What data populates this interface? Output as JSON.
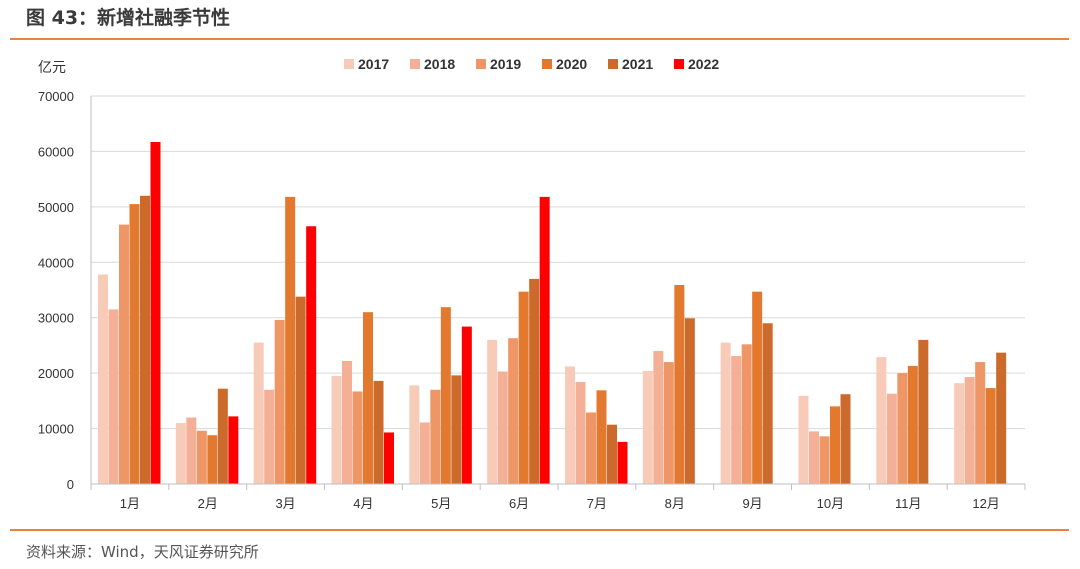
{
  "header": {
    "title": "图 43：新增社融季节性"
  },
  "footer": {
    "source": "资料来源：Wind，天风证券研究所"
  },
  "colors": {
    "accent_rule": "#e8843c",
    "gridline": "#d9d9d9",
    "axis": "#bfbfbf",
    "text": "#333333"
  },
  "chart_data": {
    "type": "bar",
    "title": "",
    "ylabel": "亿元",
    "xlabel": "",
    "ylim": [
      0,
      70000
    ],
    "yticks": [
      0,
      10000,
      20000,
      30000,
      40000,
      50000,
      60000,
      70000
    ],
    "grid": true,
    "legend_position": "top",
    "categories": [
      "1月",
      "2月",
      "3月",
      "4月",
      "5月",
      "6月",
      "7月",
      "8月",
      "9月",
      "10月",
      "11月",
      "12月"
    ],
    "series": [
      {
        "name": "2017",
        "color": "#f8cbb8",
        "values": [
          37800,
          11000,
          25500,
          19500,
          17800,
          26000,
          21200,
          20400,
          25500,
          15900,
          22900,
          18200
        ]
      },
      {
        "name": "2018",
        "color": "#f4b096",
        "values": [
          31500,
          12000,
          17000,
          22200,
          11100,
          20300,
          18400,
          24000,
          23100,
          9500,
          16300,
          19300
        ]
      },
      {
        "name": "2019",
        "color": "#ef9667",
        "values": [
          46800,
          9600,
          29600,
          16700,
          17000,
          26300,
          12900,
          22000,
          25200,
          8600,
          20000,
          22000
        ]
      },
      {
        "name": "2020",
        "color": "#e3782f",
        "values": [
          50500,
          8800,
          51800,
          31000,
          31900,
          34700,
          16900,
          35900,
          34700,
          14000,
          21300,
          17300
        ]
      },
      {
        "name": "2021",
        "color": "#cc6a2c",
        "values": [
          52000,
          17200,
          33800,
          18600,
          19600,
          37000,
          10700,
          29900,
          29000,
          16200,
          26000,
          23700
        ]
      },
      {
        "name": "2022",
        "color": "#ff0000",
        "values": [
          61700,
          12200,
          46500,
          9300,
          28400,
          51800,
          7600,
          null,
          null,
          null,
          null,
          null
        ]
      }
    ]
  }
}
